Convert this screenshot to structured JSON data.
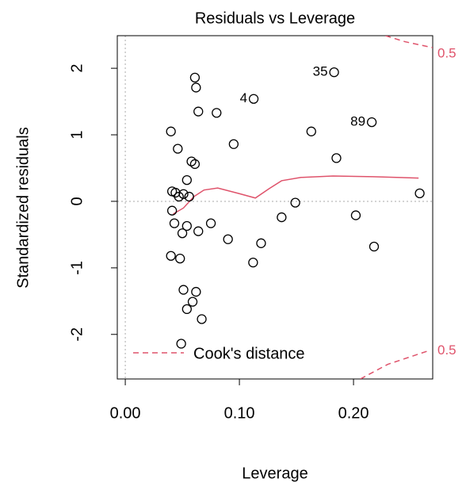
{
  "chart_data": {
    "type": "scatter",
    "title": "Residuals vs Leverage",
    "xlabel": "Leverage",
    "ylabel": "Standardized residuals",
    "xlim": [
      -0.007,
      0.2694
    ],
    "ylim": [
      -2.67,
      2.49
    ],
    "xticks": [
      {
        "value": 0,
        "label": "0.00"
      },
      {
        "value": 0.1,
        "label": "0.10"
      },
      {
        "value": 0.2,
        "label": "0.20"
      }
    ],
    "yticks": [
      -2,
      -1,
      0,
      1,
      2
    ],
    "reference_x": [
      0
    ],
    "reference_y": [
      0
    ],
    "point_color": "#000000",
    "series": [
      {
        "x": [
          0.061,
          0.062,
          0.064,
          0.08,
          0.1125,
          0.183,
          0.216,
          0.04,
          0.163,
          0.095,
          0.046,
          0.185,
          0.058,
          0.061,
          0.054,
          0.041,
          0.044,
          0.051,
          0.047,
          0.056,
          0.258,
          0.149,
          0.137,
          0.202,
          0.041,
          0.043,
          0.054,
          0.05,
          0.075,
          0.064,
          0.09,
          0.119,
          0.218,
          0.04,
          0.048,
          0.112,
          0.051,
          0.062,
          0.059,
          0.054,
          0.067,
          0.049
        ],
        "values": [
          1.86,
          1.71,
          1.35,
          1.33,
          1.54,
          1.94,
          1.19,
          1.05,
          1.05,
          0.86,
          0.79,
          0.65,
          0.6,
          0.56,
          0.32,
          0.15,
          0.13,
          0.11,
          0.07,
          0.07,
          0.12,
          -0.02,
          -0.24,
          -0.21,
          -0.14,
          -0.33,
          -0.37,
          -0.48,
          -0.33,
          -0.45,
          -0.57,
          -0.63,
          -0.68,
          -0.82,
          -0.86,
          -0.92,
          -1.33,
          -1.36,
          -1.51,
          -1.62,
          -1.77,
          -2.14
        ],
        "point_labels": [
          null,
          null,
          null,
          null,
          "4",
          "35",
          "89",
          null,
          null,
          null,
          null,
          null,
          null,
          null,
          null,
          null,
          null,
          null,
          null,
          null,
          null,
          null,
          null,
          null,
          null,
          null,
          null,
          null,
          null,
          null,
          null,
          null,
          null,
          null,
          null,
          null,
          null,
          null,
          null,
          null,
          null,
          null
        ]
      }
    ],
    "smooth": {
      "color": "#df536b",
      "x": [
        0.042,
        0.051,
        0.06,
        0.069,
        0.081,
        0.099,
        0.114,
        0.126,
        0.137,
        0.154,
        0.182,
        0.217,
        0.257
      ],
      "values": [
        -0.19,
        -0.1,
        0.07,
        0.17,
        0.2,
        0.12,
        0.05,
        0.19,
        0.31,
        0.36,
        0.38,
        0.37,
        0.35
      ]
    },
    "cooks_distance": {
      "name": "Cook's distance",
      "color": "#df536b",
      "curves": [
        {
          "label": "0.5",
          "x": [
            0.228,
            0.245,
            0.2694
          ],
          "values": [
            2.49,
            2.4,
            2.31
          ]
        },
        {
          "label": "0.5",
          "x": [
            0.206,
            0.23,
            0.265
          ],
          "values": [
            -2.67,
            -2.45,
            -2.25
          ]
        }
      ]
    }
  }
}
